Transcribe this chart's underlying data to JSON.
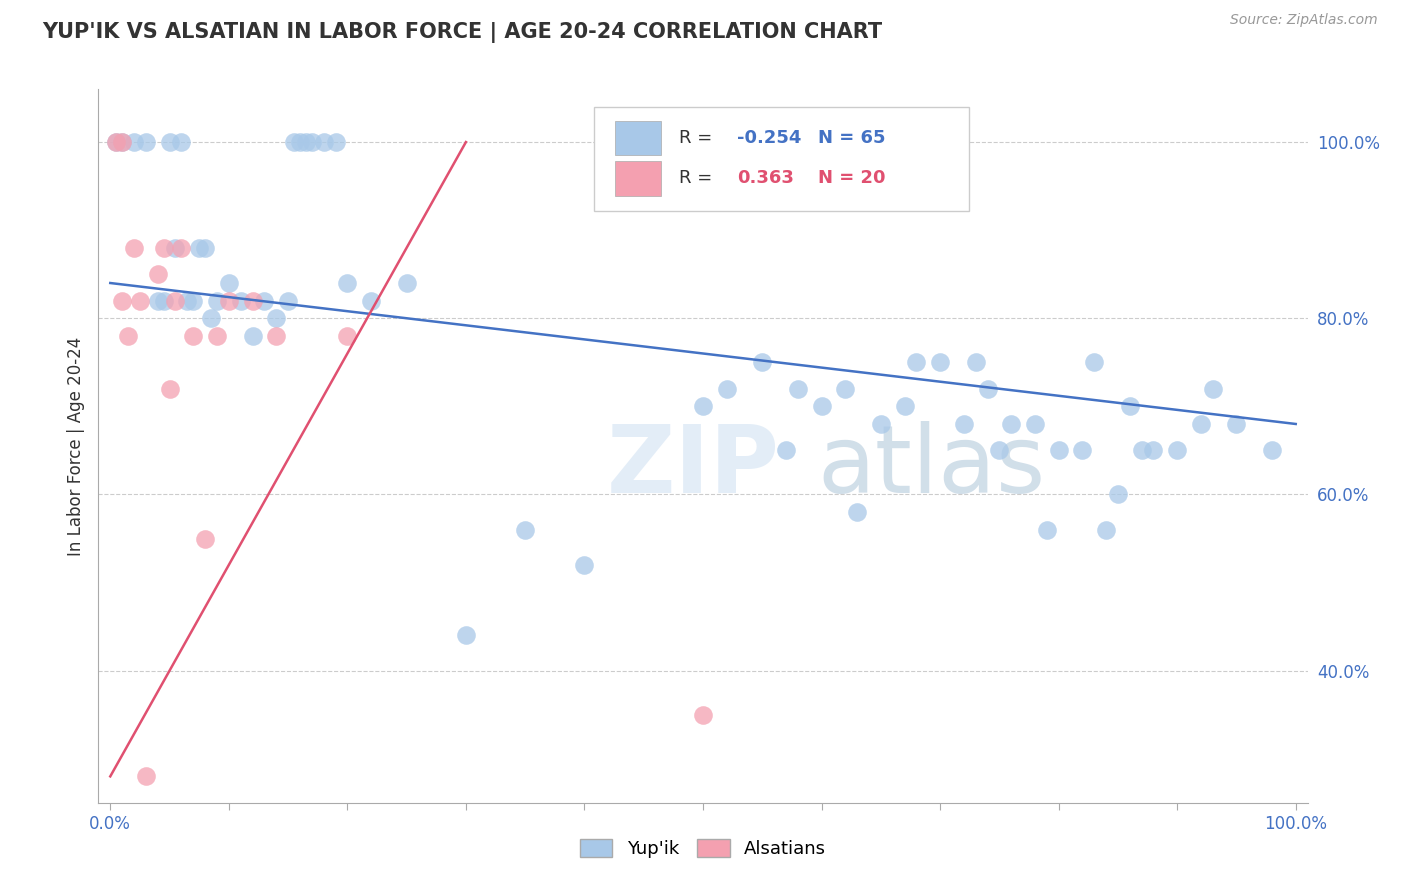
{
  "title": "YUP'IK VS ALSATIAN IN LABOR FORCE | AGE 20-24 CORRELATION CHART",
  "source_text": "Source: ZipAtlas.com",
  "ylabel": "In Labor Force | Age 20-24",
  "watermark_zip": "ZIP",
  "watermark_atlas": "atlas",
  "xlim": [
    -0.01,
    1.01
  ],
  "ylim": [
    0.25,
    1.06
  ],
  "blue_color": "#A8C8E8",
  "pink_color": "#F4A0B0",
  "blue_line_color": "#4472C4",
  "pink_line_color": "#E05070",
  "R_blue": -0.254,
  "N_blue": 65,
  "R_pink": 0.363,
  "N_pink": 20,
  "yticks": [
    0.4,
    0.6,
    0.8,
    1.0
  ],
  "ytick_labels": [
    "40.0%",
    "60.0%",
    "80.0%",
    "100.0%"
  ],
  "blue_scatter_x": [
    0.005,
    0.01,
    0.02,
    0.03,
    0.04,
    0.045,
    0.05,
    0.055,
    0.06,
    0.065,
    0.07,
    0.075,
    0.08,
    0.085,
    0.09,
    0.1,
    0.11,
    0.12,
    0.13,
    0.14,
    0.15,
    0.155,
    0.16,
    0.165,
    0.17,
    0.18,
    0.19,
    0.2,
    0.22,
    0.25,
    0.3,
    0.35,
    0.4,
    0.5,
    0.52,
    0.55,
    0.57,
    0.58,
    0.6,
    0.62,
    0.63,
    0.65,
    0.67,
    0.68,
    0.7,
    0.72,
    0.73,
    0.74,
    0.75,
    0.76,
    0.78,
    0.79,
    0.8,
    0.82,
    0.83,
    0.84,
    0.85,
    0.86,
    0.87,
    0.88,
    0.9,
    0.92,
    0.93,
    0.95,
    0.98
  ],
  "blue_scatter_y": [
    1.0,
    1.0,
    1.0,
    1.0,
    0.82,
    0.82,
    1.0,
    0.88,
    1.0,
    0.82,
    0.82,
    0.88,
    0.88,
    0.8,
    0.82,
    0.84,
    0.82,
    0.78,
    0.82,
    0.8,
    0.82,
    1.0,
    1.0,
    1.0,
    1.0,
    1.0,
    1.0,
    0.84,
    0.82,
    0.84,
    0.44,
    0.56,
    0.52,
    0.7,
    0.72,
    0.75,
    0.65,
    0.72,
    0.7,
    0.72,
    0.58,
    0.68,
    0.7,
    0.75,
    0.75,
    0.68,
    0.75,
    0.72,
    0.65,
    0.68,
    0.68,
    0.56,
    0.65,
    0.65,
    0.75,
    0.56,
    0.6,
    0.7,
    0.65,
    0.65,
    0.65,
    0.68,
    0.72,
    0.68,
    0.65
  ],
  "pink_scatter_x": [
    0.005,
    0.01,
    0.01,
    0.015,
    0.02,
    0.025,
    0.03,
    0.04,
    0.045,
    0.05,
    0.055,
    0.06,
    0.07,
    0.08,
    0.09,
    0.1,
    0.12,
    0.14,
    0.2,
    0.5
  ],
  "pink_scatter_y": [
    1.0,
    1.0,
    0.82,
    0.78,
    0.88,
    0.82,
    0.28,
    0.85,
    0.88,
    0.72,
    0.82,
    0.88,
    0.78,
    0.55,
    0.78,
    0.82,
    0.82,
    0.78,
    0.78,
    0.35
  ],
  "blue_line_x0": 0.0,
  "blue_line_x1": 1.0,
  "blue_line_y0": 0.84,
  "blue_line_y1": 0.68,
  "pink_line_x0": 0.0,
  "pink_line_x1": 0.3,
  "pink_line_y0": 0.28,
  "pink_line_y1": 1.0
}
